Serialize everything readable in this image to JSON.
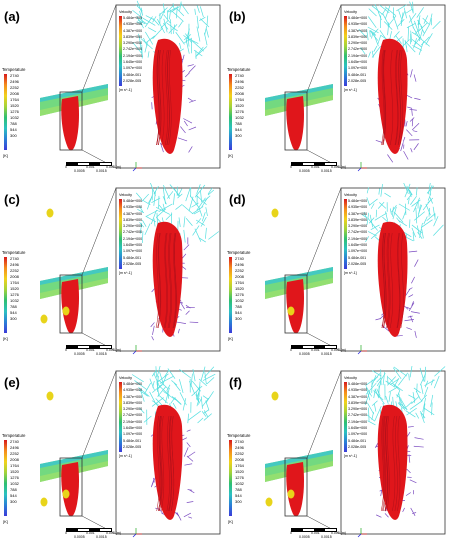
{
  "legend": {
    "temperature_title": "Temperature",
    "temperature_ticks": [
      "2740",
      "2496",
      "2252",
      "2008",
      "1764",
      "1520",
      "1276",
      "1032",
      "788",
      "544",
      "300"
    ],
    "temperature_unit": "[K]",
    "velocity_title": "Velocity",
    "velocity_ticks": [
      "5.484e+000",
      "4.935e+000",
      "4.387e+000",
      "3.839e+000",
      "3.290e+000",
      "2.742e+000",
      "2.194e+000",
      "1.645e+000",
      "1.097e+000",
      "5.484e-001",
      "2.028e-005"
    ],
    "velocity_unit": "[m s^-1]"
  },
  "scale_bar": {
    "labels": [
      "0",
      "0.001",
      "0.002 (m)"
    ],
    "sub_labels": [
      "0.0005",
      "0.0015"
    ]
  },
  "panels": [
    {
      "label": "(a)"
    },
    {
      "label": "(b)"
    },
    {
      "label": "(c)"
    },
    {
      "label": "(d)"
    },
    {
      "label": "(e)"
    },
    {
      "label": "(f)"
    }
  ],
  "colors": {
    "melt_pool": "#e0161b",
    "plate_green": "#58d070",
    "plate_cyan": "#30c9c9",
    "vector_cyan": "#5ee3e0",
    "spatter": "#e8d41a"
  }
}
